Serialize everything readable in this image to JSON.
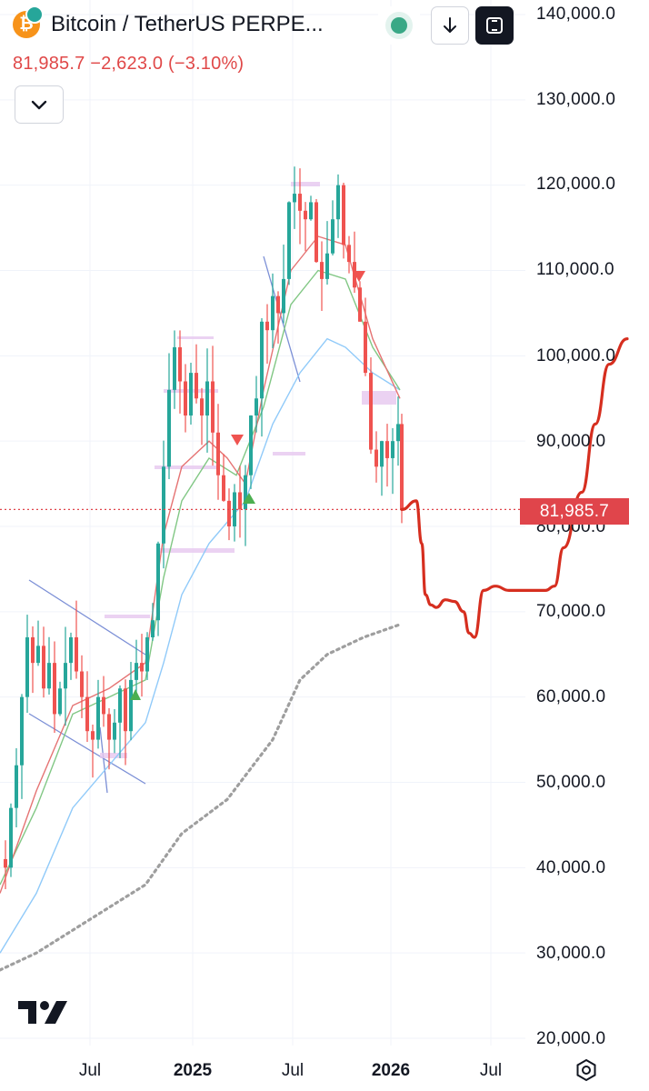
{
  "header": {
    "symbol_title": "Bitcoin / TetherUS PERPE...",
    "coin_glyph": "₿",
    "price_line": "81,985.7  −2,623.0 (−3.10%)"
  },
  "toolbar": {
    "status_icon": "green-dot-icon",
    "download_icon": "arrow-down-icon",
    "fullscreen_icon": "frame-icon",
    "expand_icon": "chevron-down-icon"
  },
  "colors": {
    "bull": "#26a69a",
    "bear": "#ef5350",
    "projection": "#d62e1f",
    "ma_fast": "#e57373",
    "ma_mid": "#81c784",
    "ma_slow": "#90caf9",
    "ma_long": "#9e9e9e"
  },
  "axis": {
    "y_labels": [
      "140,000.0",
      "130,000.0",
      "120,000.0",
      "110,000.0",
      "100,000.0",
      "90,000.0",
      "80,000.0",
      "70,000.0",
      "60,000.0",
      "50,000.0",
      "40,000.0",
      "30,000.0",
      "20,000.0"
    ],
    "x_labels": [
      "Jul",
      "2025",
      "Jul",
      "2026",
      "Jul"
    ],
    "current_price_label": "81,985.7"
  },
  "chart_data": {
    "type": "candlestick",
    "symbol": "BTCUSDT.P",
    "interval": "weekly",
    "ylim": [
      20000,
      140000
    ],
    "last_price": 81985.7,
    "change": -2623.0,
    "change_pct": -3.1,
    "price_path_close": [
      [
        0,
        41000
      ],
      [
        6,
        40000
      ],
      [
        12,
        47000
      ],
      [
        18,
        52000
      ],
      [
        24,
        60000
      ],
      [
        30,
        67000
      ],
      [
        36,
        64000
      ],
      [
        42,
        66000
      ],
      [
        48,
        61000
      ],
      [
        54,
        64000
      ],
      [
        60,
        58000
      ],
      [
        66,
        61000
      ],
      [
        72,
        64000
      ],
      [
        78,
        67000
      ],
      [
        84,
        63000
      ],
      [
        90,
        60000
      ],
      [
        96,
        56000
      ],
      [
        102,
        55000
      ],
      [
        108,
        60000
      ],
      [
        114,
        58000
      ],
      [
        120,
        55000
      ],
      [
        126,
        57000
      ],
      [
        132,
        61000
      ],
      [
        138,
        56000
      ],
      [
        144,
        62000
      ],
      [
        150,
        64000
      ],
      [
        156,
        63000
      ],
      [
        162,
        67000
      ],
      [
        168,
        69000
      ],
      [
        174,
        78000
      ],
      [
        180,
        87000
      ],
      [
        186,
        96000
      ],
      [
        192,
        101000
      ],
      [
        198,
        97000
      ],
      [
        204,
        93000
      ],
      [
        210,
        98000
      ],
      [
        216,
        95000
      ],
      [
        222,
        93000
      ],
      [
        228,
        97000
      ],
      [
        234,
        91000
      ],
      [
        240,
        86000
      ],
      [
        246,
        83000
      ],
      [
        252,
        80000
      ],
      [
        258,
        84000
      ],
      [
        264,
        82000
      ],
      [
        270,
        86000
      ],
      [
        276,
        93000
      ],
      [
        282,
        95000
      ],
      [
        288,
        104000
      ],
      [
        294,
        103000
      ],
      [
        300,
        107000
      ],
      [
        306,
        105000
      ],
      [
        312,
        109000
      ],
      [
        318,
        118000
      ],
      [
        324,
        119000
      ],
      [
        330,
        117000
      ],
      [
        336,
        116000
      ],
      [
        342,
        118000
      ],
      [
        348,
        111000
      ],
      [
        354,
        109000
      ],
      [
        360,
        112000
      ],
      [
        366,
        116000
      ],
      [
        372,
        120000
      ],
      [
        378,
        113000
      ],
      [
        384,
        111000
      ],
      [
        390,
        108000
      ],
      [
        396,
        104000
      ],
      [
        402,
        98000
      ],
      [
        408,
        89000
      ],
      [
        414,
        87000
      ],
      [
        420,
        90000
      ],
      [
        426,
        88000
      ],
      [
        432,
        90000
      ],
      [
        438,
        92000
      ],
      [
        442,
        82000
      ]
    ],
    "projection": [
      [
        442,
        81986
      ],
      [
        458,
        83000
      ],
      [
        464,
        78000
      ],
      [
        468,
        72000
      ],
      [
        474,
        70800
      ],
      [
        480,
        70500
      ],
      [
        490,
        71400
      ],
      [
        500,
        71200
      ],
      [
        510,
        70000
      ],
      [
        516,
        67500
      ],
      [
        522,
        67000
      ],
      [
        532,
        72500
      ],
      [
        545,
        73000
      ],
      [
        560,
        72500
      ],
      [
        600,
        72500
      ],
      [
        610,
        73000
      ],
      [
        620,
        77500
      ],
      [
        640,
        84000
      ],
      [
        655,
        92000
      ],
      [
        670,
        99000
      ],
      [
        690,
        102000
      ]
    ],
    "ma_fast": [
      [
        0,
        37000
      ],
      [
        40,
        49000
      ],
      [
        80,
        59000
      ],
      [
        120,
        61000
      ],
      [
        160,
        64000
      ],
      [
        180,
        79000
      ],
      [
        200,
        87000
      ],
      [
        230,
        90000
      ],
      [
        250,
        88000
      ],
      [
        270,
        85000
      ],
      [
        290,
        96000
      ],
      [
        320,
        110000
      ],
      [
        350,
        114000
      ],
      [
        380,
        113000
      ],
      [
        410,
        102000
      ],
      [
        440,
        95000
      ]
    ],
    "ma_mid": [
      [
        0,
        38000
      ],
      [
        40,
        47000
      ],
      [
        80,
        58000
      ],
      [
        120,
        60000
      ],
      [
        160,
        62000
      ],
      [
        180,
        74000
      ],
      [
        200,
        83000
      ],
      [
        230,
        88000
      ],
      [
        260,
        86000
      ],
      [
        290,
        94000
      ],
      [
        320,
        106000
      ],
      [
        350,
        110000
      ],
      [
        380,
        109000
      ],
      [
        410,
        101000
      ],
      [
        440,
        96000
      ]
    ],
    "ma_slow": [
      [
        0,
        30000
      ],
      [
        40,
        37000
      ],
      [
        80,
        47000
      ],
      [
        120,
        52000
      ],
      [
        160,
        57000
      ],
      [
        180,
        64000
      ],
      [
        200,
        72000
      ],
      [
        230,
        78000
      ],
      [
        270,
        83000
      ],
      [
        300,
        92000
      ],
      [
        330,
        98000
      ],
      [
        360,
        102000
      ],
      [
        380,
        101000
      ],
      [
        410,
        98000
      ],
      [
        440,
        96000
      ]
    ],
    "ma_long": [
      [
        0,
        28000
      ],
      [
        40,
        30000
      ],
      [
        100,
        34000
      ],
      [
        160,
        38000
      ],
      [
        200,
        44000
      ],
      [
        250,
        48000
      ],
      [
        300,
        55000
      ],
      [
        330,
        62000
      ],
      [
        360,
        65000
      ],
      [
        400,
        67000
      ],
      [
        440,
        68500
      ]
    ]
  }
}
